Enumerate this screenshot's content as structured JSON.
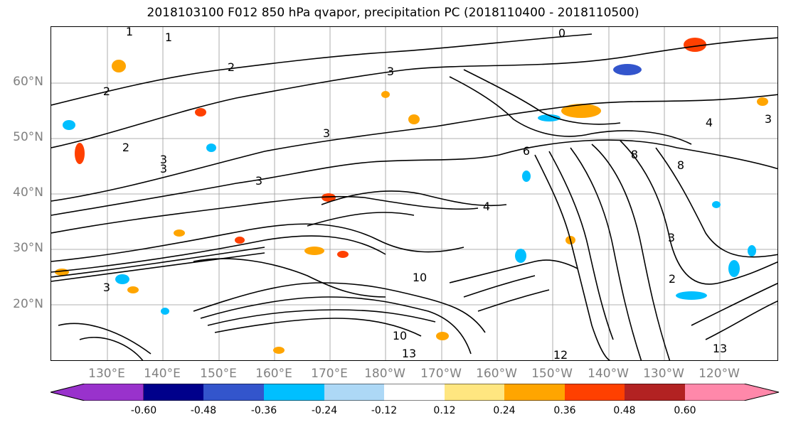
{
  "title": "2018103100 F012 850 hPa qvapor, precipitation PC (2018110400 - 2018110500)",
  "lat_labels": [
    "60°N",
    "50°N",
    "40°N",
    "30°N",
    "20°N"
  ],
  "lon_labels": [
    "130°E",
    "140°E",
    "150°E",
    "160°E",
    "170°E",
    "180°W",
    "170°W",
    "160°W",
    "150°W",
    "140°W",
    "130°W",
    "120°W"
  ],
  "contour_labels": [
    "1",
    "1",
    "0",
    "2",
    "2",
    "2",
    "3",
    "3",
    "3",
    "3",
    "3",
    "4",
    "6",
    "8",
    "8",
    "10",
    "10",
    "12",
    "13",
    "13",
    "3",
    "2",
    "3",
    "3",
    "4"
  ],
  "colorbar": {
    "ticks": [
      "-0.60",
      "-0.48",
      "-0.36",
      "-0.24",
      "-0.12",
      "0.12",
      "0.24",
      "0.36",
      "0.48",
      "0.60"
    ],
    "colors": [
      "#9932cc",
      "#00008b",
      "#3355cc",
      "#00bfff",
      "#add8f6",
      "#ffffff",
      "#ffe680",
      "#ffa500",
      "#ff4000",
      "#b22222",
      "#ff88aa"
    ]
  }
}
